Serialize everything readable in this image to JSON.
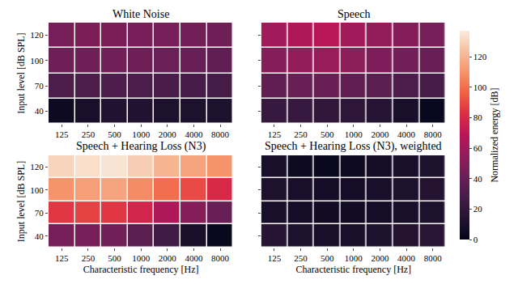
{
  "chart_data": {
    "type": "heatmap",
    "categories": [
      125,
      250,
      500,
      1000,
      2000,
      4000,
      8000
    ],
    "y_categories": [
      40,
      70,
      100,
      120
    ],
    "colorbar_title": "Normalized energy [dB]",
    "zlim": [
      0,
      137
    ],
    "zticks": [
      0,
      20,
      40,
      60,
      80,
      100,
      120
    ],
    "grid": true,
    "panels": [
      {
        "title": "White Noise",
        "ylabel": "Input level [dB SPL]",
        "values": [
          [
            5,
            10,
            13,
            13,
            12,
            12,
            12
          ],
          [
            30,
            30,
            31,
            30,
            29,
            28,
            27
          ],
          [
            42,
            42,
            43,
            42,
            41,
            40,
            38
          ],
          [
            45,
            47,
            47,
            46,
            45,
            44,
            42
          ]
        ]
      },
      {
        "title": "Speech",
        "tick_labels": "x",
        "values": [
          [
            22,
            22,
            20,
            18,
            15,
            10,
            3
          ],
          [
            38,
            40,
            40,
            38,
            35,
            30,
            28
          ],
          [
            50,
            55,
            57,
            52,
            48,
            44,
            40
          ],
          [
            60,
            65,
            68,
            60,
            55,
            50,
            45
          ]
        ]
      },
      {
        "title": "Speech + Hearing Loss (N3)",
        "ylabel": "Input level [dB SPL]",
        "xlabel": "Characteristic frequency [Hz]",
        "values": [
          [
            45,
            45,
            43,
            35,
            25,
            10,
            3
          ],
          [
            85,
            88,
            85,
            78,
            65,
            50,
            40
          ],
          [
            110,
            113,
            115,
            108,
            100,
            90,
            80
          ],
          [
            130,
            133,
            135,
            128,
            120,
            115,
            110
          ]
        ]
      },
      {
        "title": "Speech + Hearing Loss (N3), weighted",
        "xlabel": "Characteristic frequency [Hz]",
        "tick_labels": "x",
        "values": [
          [
            15,
            12,
            10,
            10,
            12,
            14,
            16
          ],
          [
            10,
            8,
            6,
            6,
            8,
            10,
            12
          ],
          [
            12,
            10,
            8,
            8,
            10,
            12,
            14
          ],
          [
            10,
            5,
            3,
            5,
            8,
            10,
            12
          ]
        ]
      }
    ]
  }
}
